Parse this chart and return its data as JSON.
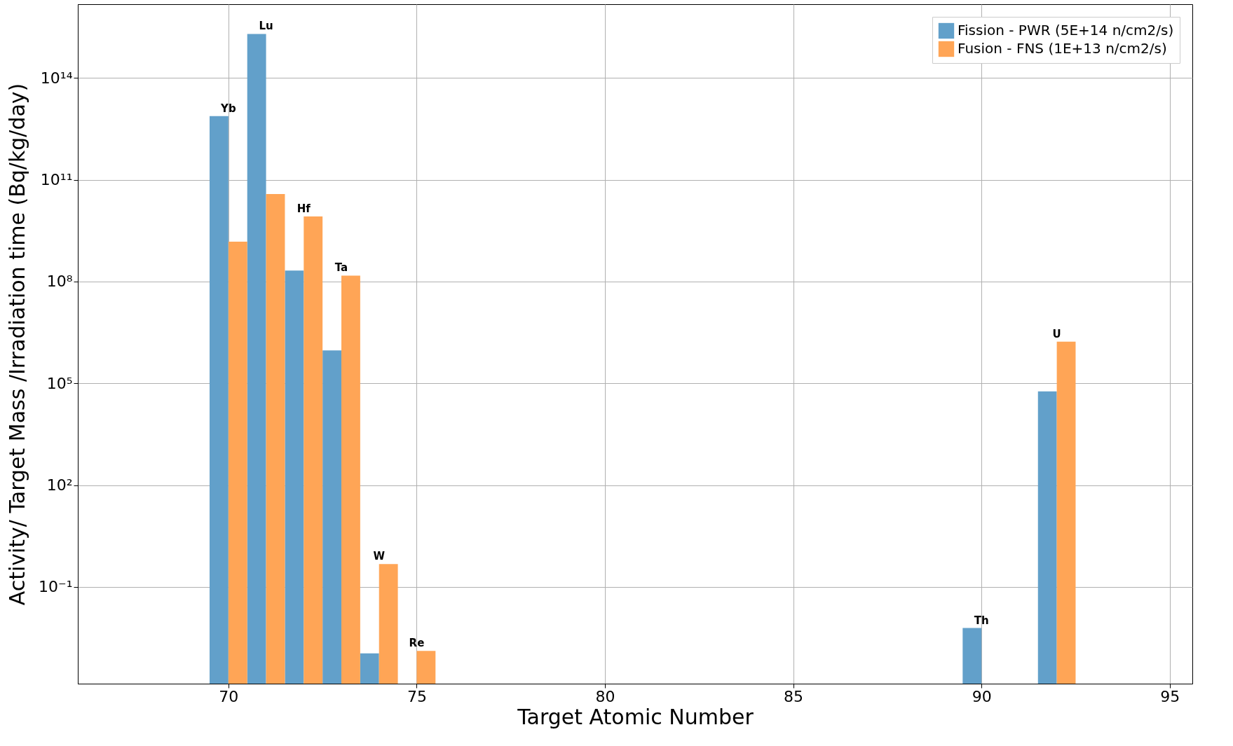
{
  "chart_data": {
    "type": "bar",
    "xlabel": "Target Atomic Number",
    "ylabel": "Activity/ Target Mass /Irradiation time (Bq/kg/day)",
    "x": [
      70,
      71,
      72,
      73,
      74,
      75,
      90,
      92
    ],
    "series": [
      {
        "name": "Fission - PWR (5E+14 n/cm2/s)",
        "color": "#62a0ca",
        "values": [
          7500000000000.0,
          2000000000000000.0,
          210000000.0,
          930000.0,
          0.0011,
          null,
          0.0061,
          58000.0
        ]
      },
      {
        "name": "Fusion - FNS (1E+13 n/cm2/s)",
        "color": "#ffa556",
        "values": [
          1500000000.0,
          38000000000.0,
          8300000000.0,
          150000000.0,
          0.47,
          0.0013,
          null,
          1700000.0
        ]
      }
    ],
    "annotations": [
      {
        "text": "Yb",
        "x": 70,
        "y": 7500000000000.0
      },
      {
        "text": "Lu",
        "x": 71,
        "y": 2000000000000000.0
      },
      {
        "text": "Hf",
        "x": 72,
        "y": 8300000000.0
      },
      {
        "text": "Ta",
        "x": 73,
        "y": 150000000.0
      },
      {
        "text": "W",
        "x": 74,
        "y": 0.47
      },
      {
        "text": "Re",
        "x": 75,
        "y": 0.0013
      },
      {
        "text": "Th",
        "x": 90,
        "y": 0.0061
      },
      {
        "text": "U",
        "x": 92,
        "y": 1700000.0
      }
    ],
    "log": "y",
    "xlim": [
      66,
      95.6
    ],
    "xticks": [
      70,
      75,
      80,
      85,
      90,
      95
    ],
    "ylim": [
      0.00014,
      1.5e+16
    ],
    "yticks": [
      {
        "value": 0.1,
        "label": "10⁻¹"
      },
      {
        "value": 100,
        "label": "10²"
      },
      {
        "value": 100000.0,
        "label": "10⁵"
      },
      {
        "value": 100000000.0,
        "label": "10⁸"
      },
      {
        "value": 100000000000.0,
        "label": "10¹¹"
      },
      {
        "value": 100000000000000.0,
        "label": "10¹⁴"
      }
    ],
    "grid": true,
    "legend": "top right"
  }
}
